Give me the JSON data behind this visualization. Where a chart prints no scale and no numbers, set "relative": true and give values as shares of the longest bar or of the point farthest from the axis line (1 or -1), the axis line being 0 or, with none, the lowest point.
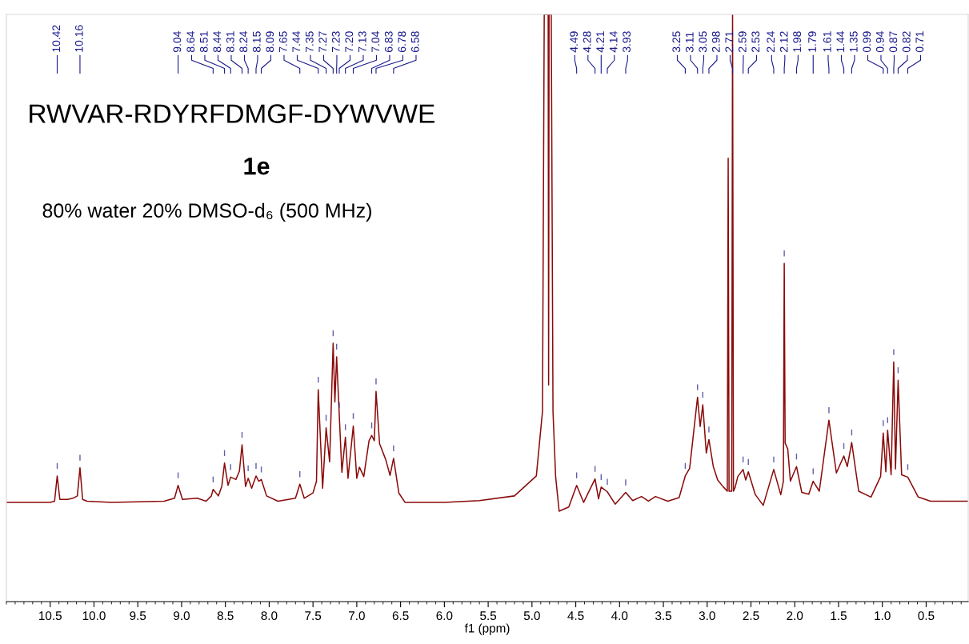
{
  "chart_data": {
    "type": "line",
    "relative": true,
    "title": "RWVAR-RDYRFDMGF-DYWVWE",
    "subtitle": "1e",
    "xlabel": "f1 (ppm)",
    "xlim": [
      11.0,
      0.02
    ],
    "xticks": [
      10.5,
      {
        "value": 10,
        "label": "10.0"
      },
      9.5,
      {
        "value": 9,
        "label": "9.0"
      },
      8.5,
      {
        "value": 8,
        "label": "8.0"
      },
      7.5,
      {
        "value": 7,
        "label": "7.0"
      },
      6.5,
      {
        "value": 6,
        "label": "6.0"
      },
      5.5,
      {
        "value": 5,
        "label": "5.0"
      },
      4.5,
      {
        "value": 4,
        "label": "4.0"
      },
      3.5,
      {
        "value": 3,
        "label": "3.0"
      },
      2.5,
      {
        "value": 2,
        "label": "2.0"
      },
      1.5,
      {
        "value": 1,
        "label": "1.0"
      },
      0.5
    ],
    "tick_labels": "x",
    "marker": "none",
    "line_style": "solid",
    "series": [
      {
        "color": "#8b0a0a",
        "x": [
          11.0,
          10.5,
          10.45,
          10.42,
          10.39,
          10.3,
          10.24,
          10.19,
          10.16,
          10.13,
          10.08,
          9.8,
          9.5,
          9.2,
          9.08,
          9.04,
          8.99,
          8.82,
          8.72,
          8.66,
          8.64,
          8.58,
          8.54,
          8.51,
          8.47,
          8.44,
          8.38,
          8.34,
          8.31,
          8.27,
          8.24,
          8.2,
          8.15,
          8.12,
          8.09,
          8.03,
          7.9,
          7.7,
          7.65,
          7.6,
          7.5,
          7.46,
          7.44,
          7.39,
          7.35,
          7.31,
          7.27,
          7.25,
          7.23,
          7.2,
          7.17,
          7.13,
          7.1,
          7.04,
          7.0,
          6.97,
          6.92,
          6.86,
          6.83,
          6.8,
          6.78,
          6.74,
          6.67,
          6.62,
          6.58,
          6.52,
          6.45,
          6.0,
          5.6,
          5.2,
          4.95,
          4.88,
          4.86,
          4.815,
          4.81,
          4.805,
          4.78,
          4.76,
          4.73,
          4.69,
          4.58,
          4.49,
          4.41,
          4.28,
          4.24,
          4.21,
          4.14,
          4.05,
          3.93,
          3.85,
          3.75,
          3.67,
          3.59,
          3.45,
          3.32,
          3.25,
          3.2,
          3.11,
          3.08,
          3.05,
          3.01,
          2.98,
          2.93,
          2.88,
          2.82,
          2.77,
          2.76,
          2.75,
          2.72,
          2.71,
          2.7,
          2.68,
          2.65,
          2.59,
          2.56,
          2.53,
          2.45,
          2.36,
          2.24,
          2.16,
          2.13,
          2.12,
          2.11,
          2.08,
          2.05,
          1.98,
          1.92,
          1.84,
          1.79,
          1.72,
          1.61,
          1.525,
          1.44,
          1.4,
          1.35,
          1.27,
          1.13,
          1.02,
          0.99,
          0.96,
          0.94,
          0.9,
          0.87,
          0.85,
          0.82,
          0.78,
          0.71,
          0.59,
          0.45,
          0.02
        ],
        "values": [
          0.169,
          0.169,
          0.171,
          0.214,
          0.174,
          0.174,
          0.176,
          0.18,
          0.228,
          0.174,
          0.171,
          0.169,
          0.17,
          0.171,
          0.176,
          0.198,
          0.174,
          0.176,
          0.171,
          0.18,
          0.191,
          0.18,
          0.197,
          0.236,
          0.198,
          0.212,
          0.208,
          0.222,
          0.267,
          0.196,
          0.21,
          0.193,
          0.214,
          0.205,
          0.208,
          0.18,
          0.171,
          0.176,
          0.2,
          0.176,
          0.185,
          0.205,
          0.361,
          0.193,
          0.296,
          0.238,
          0.44,
          0.34,
          0.417,
          0.318,
          0.22,
          0.28,
          0.21,
          0.299,
          0.21,
          0.229,
          0.213,
          0.274,
          0.283,
          0.274,
          0.358,
          0.269,
          0.242,
          0.215,
          0.244,
          0.185,
          0.169,
          0.169,
          0.172,
          0.18,
          0.214,
          0.324,
          1.0,
          1.0,
          0.369,
          1.0,
          1.0,
          0.324,
          0.213,
          0.154,
          0.161,
          0.198,
          0.169,
          0.209,
          0.175,
          0.195,
          0.187,
          0.166,
          0.186,
          0.172,
          0.179,
          0.171,
          0.179,
          0.171,
          0.177,
          0.214,
          0.227,
          0.348,
          0.298,
          0.335,
          0.253,
          0.276,
          0.23,
          0.207,
          0.196,
          0.188,
          0.755,
          0.188,
          0.188,
          1.0,
          0.188,
          0.195,
          0.213,
          0.225,
          0.207,
          0.221,
          0.182,
          0.164,
          0.225,
          0.182,
          0.205,
          0.576,
          0.27,
          0.26,
          0.205,
          0.23,
          0.186,
          0.183,
          0.205,
          0.188,
          0.309,
          0.219,
          0.248,
          0.23,
          0.271,
          0.188,
          0.178,
          0.213,
          0.287,
          0.221,
          0.292,
          0.216,
          0.408,
          0.226,
          0.377,
          0.216,
          0.212,
          0.178,
          0.171,
          0.171
        ]
      }
    ],
    "annotations": [
      "80% water 20% DMSO-d₆ (500 MHz)",
      {
        "text": "10.42",
        "x": 10.42
      },
      {
        "text": "10.16",
        "x": 10.16
      },
      {
        "text": "9.04",
        "x": 9.04
      },
      {
        "text": "8.64",
        "x": 8.64
      },
      {
        "text": "8.51",
        "x": 8.51
      },
      {
        "text": "8.44",
        "x": 8.44
      },
      {
        "text": "8.31",
        "x": 8.31
      },
      {
        "text": "8.24",
        "x": 8.24
      },
      {
        "text": "8.15",
        "x": 8.15
      },
      {
        "text": "8.09",
        "x": 8.09
      },
      {
        "text": "7.65",
        "x": 7.65
      },
      {
        "text": "7.44",
        "x": 7.44
      },
      {
        "text": "7.35",
        "x": 7.35
      },
      {
        "text": "7.27",
        "x": 7.27
      },
      {
        "text": "7.23",
        "x": 7.23
      },
      {
        "text": "7.20",
        "x": 7.2
      },
      {
        "text": "7.13",
        "x": 7.13
      },
      {
        "text": "7.04",
        "x": 7.04
      },
      {
        "text": "6.83",
        "x": 6.83
      },
      {
        "text": "6.78",
        "x": 6.78
      },
      {
        "text": "6.58",
        "x": 6.58
      },
      {
        "text": "4.49",
        "x": 4.49
      },
      {
        "text": "4.28",
        "x": 4.28
      },
      {
        "text": "4.21",
        "x": 4.21
      },
      {
        "text": "4.14",
        "x": 4.14
      },
      {
        "text": "3.93",
        "x": 3.93
      },
      {
        "text": "3.25",
        "x": 3.25
      },
      {
        "text": "3.11",
        "x": 3.11
      },
      {
        "text": "3.05",
        "x": 3.05
      },
      {
        "text": "2.98",
        "x": 2.98
      },
      {
        "text": "2.71",
        "x": 2.71
      },
      {
        "text": "2.59",
        "x": 2.59
      },
      {
        "text": "2.53",
        "x": 2.53
      },
      {
        "text": "2.24",
        "x": 2.24
      },
      {
        "text": "2.12",
        "x": 2.12
      },
      {
        "text": "1.98",
        "x": 1.98
      },
      {
        "text": "1.79",
        "x": 1.79
      },
      {
        "text": "1.61",
        "x": 1.61
      },
      {
        "text": "1.44",
        "x": 1.44
      },
      {
        "text": "1.35",
        "x": 1.35
      },
      {
        "text": "0.99",
        "x": 0.99
      },
      {
        "text": "0.94",
        "x": 0.94
      },
      {
        "text": "0.87",
        "x": 0.87
      },
      {
        "text": "0.82",
        "x": 0.82
      },
      {
        "text": "0.71",
        "x": 0.71
      }
    ]
  }
}
